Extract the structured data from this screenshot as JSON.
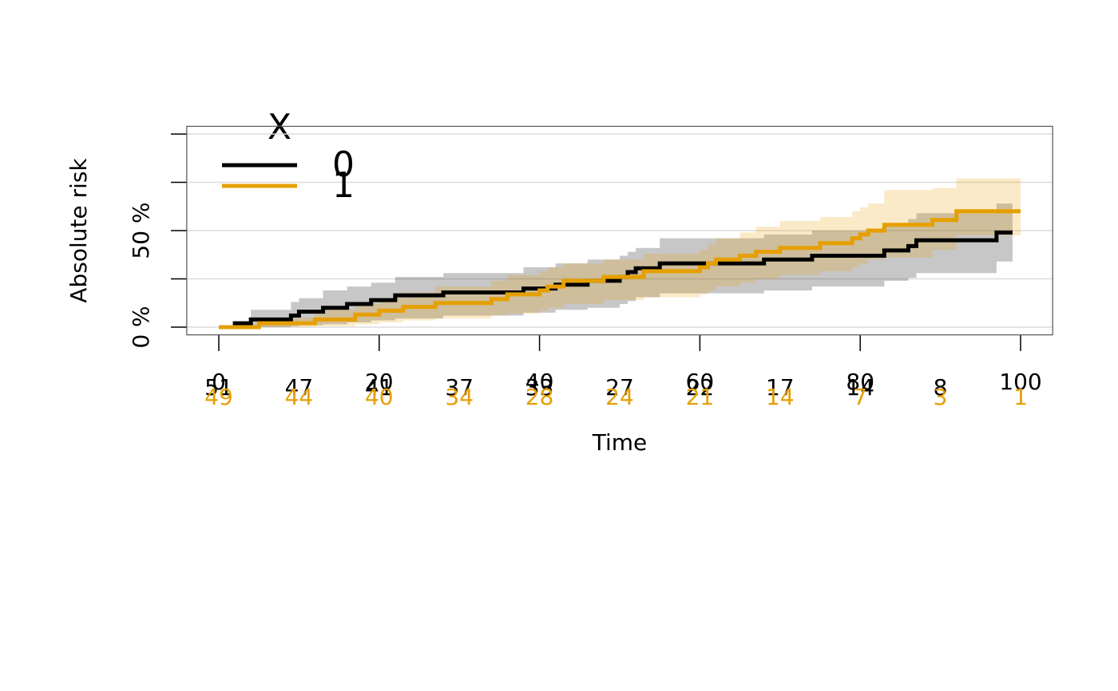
{
  "chart_data": {
    "type": "step",
    "x_label": "Time",
    "y_label": "Absolute risk",
    "legend_title": "X",
    "xlim": [
      -4,
      104
    ],
    "ylim": [
      -4,
      104
    ],
    "xticks": [
      0,
      20,
      40,
      60,
      80,
      100
    ],
    "yticks": [
      {
        "value": 0,
        "label": "0 %"
      },
      {
        "value": 25,
        "label": null
      },
      {
        "value": 50,
        "label": "50 %"
      },
      {
        "value": 75,
        "label": null
      },
      {
        "value": 100,
        "label": null
      }
    ],
    "grid": true,
    "at_risk_x": [
      0,
      10,
      20,
      30,
      40,
      50,
      60,
      70,
      80,
      90,
      100
    ],
    "series": [
      {
        "name": "0",
        "color": "#000000",
        "x": [
          0,
          2,
          4,
          9,
          10,
          13,
          16,
          19,
          22,
          28,
          38,
          42,
          46,
          50,
          51,
          52,
          55,
          68,
          74,
          83,
          86,
          87,
          97,
          99
        ],
        "values": [
          0,
          2,
          4,
          6,
          8,
          10,
          12,
          14,
          16.5,
          18,
          20,
          22,
          24,
          26,
          28.5,
          30.5,
          33,
          35,
          37,
          39.7,
          42,
          45,
          49,
          49
        ],
        "upper": [
          0,
          3,
          9,
          13,
          15,
          19,
          21,
          23,
          26,
          28,
          31,
          33,
          35,
          37,
          39,
          41,
          46,
          48,
          50,
          53,
          56,
          59,
          64,
          64
        ],
        "lower": [
          0,
          0,
          0,
          0.5,
          1,
          1.5,
          2.5,
          3.5,
          4.5,
          6,
          7.5,
          9,
          10,
          12,
          13.5,
          15.5,
          17.5,
          19,
          21,
          24,
          25.5,
          28,
          34,
          34
        ],
        "at_risk": [
          51,
          47,
          41,
          37,
          33,
          27,
          22,
          17,
          14,
          8,
          null
        ]
      },
      {
        "name": "1",
        "color": "#E69F00",
        "x": [
          0,
          5,
          12,
          17,
          20,
          23,
          27,
          34,
          36,
          40,
          41,
          43,
          48,
          53,
          60,
          61,
          62,
          65,
          67,
          70,
          75,
          79,
          80,
          81,
          83,
          89,
          92,
          100
        ],
        "values": [
          0,
          2,
          4,
          6.5,
          8.5,
          10.5,
          12.5,
          14.5,
          17,
          19,
          21,
          24,
          26,
          29,
          31,
          33,
          35,
          37,
          39,
          41,
          43.5,
          46,
          48,
          50,
          53,
          55.5,
          60,
          60
        ],
        "upper": [
          0,
          5,
          9,
          12,
          15,
          18,
          21,
          24,
          27,
          29,
          31,
          33,
          35,
          38,
          40,
          43,
          46,
          49,
          52,
          55,
          57,
          60,
          62,
          64,
          71,
          72,
          77,
          77
        ],
        "lower": [
          0,
          0,
          0.5,
          1.5,
          2.5,
          3.5,
          4.5,
          6,
          7,
          8.5,
          10,
          12,
          14,
          15.5,
          17,
          19,
          21,
          23,
          25,
          27,
          29,
          31,
          33,
          35,
          36,
          40,
          47.5,
          47.5
        ],
        "at_risk": [
          49,
          44,
          40,
          34,
          28,
          24,
          21,
          14,
          7,
          3,
          1
        ]
      }
    ]
  }
}
